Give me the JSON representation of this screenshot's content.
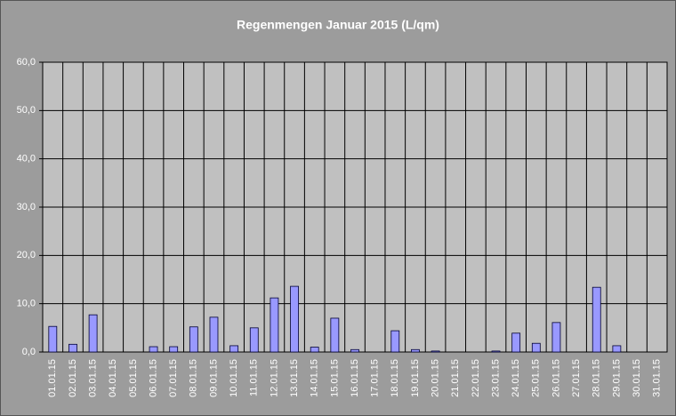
{
  "chart_data": {
    "type": "bar",
    "title": "Regenmengen Januar 2015 (L/qm)",
    "categories": [
      "01.01.15",
      "02.01.15",
      "03.01.15",
      "04.01.15",
      "05.01.15",
      "06.01.15",
      "07.01.15",
      "08.01.15",
      "09.01.15",
      "10.01.15",
      "11.01.15",
      "12.01.15",
      "13.01.15",
      "14.01.15",
      "15.01.15",
      "16.01.15",
      "17.01.15",
      "18.01.15",
      "19.01.15",
      "20.01.15",
      "21.01.15",
      "22.01.15",
      "23.01.15",
      "24.01.15",
      "25.01.15",
      "26.01.15",
      "27.01.15",
      "28.01.15",
      "29.01.15",
      "30.01.15",
      "31.01.15"
    ],
    "values": [
      5.3,
      1.6,
      7.7,
      0,
      0,
      1.1,
      1.1,
      5.2,
      7.2,
      1.3,
      5.0,
      11.2,
      13.6,
      1.0,
      7.0,
      0.5,
      0,
      4.4,
      0.5,
      0.2,
      0,
      0,
      0.2,
      3.9,
      1.8,
      6.1,
      0,
      13.4,
      1.3,
      0,
      0
    ],
    "color": "#9999ff",
    "ylim": [
      0,
      60
    ],
    "yticks": [
      {
        "value": 0,
        "label": "0,0"
      },
      {
        "value": 10,
        "label": "10,0"
      },
      {
        "value": 20,
        "label": "20,0"
      },
      {
        "value": 30,
        "label": "30,0"
      },
      {
        "value": 40,
        "label": "40,0"
      },
      {
        "value": 50,
        "label": "50,0"
      },
      {
        "value": 60,
        "label": "60,0"
      }
    ],
    "grid": true
  }
}
